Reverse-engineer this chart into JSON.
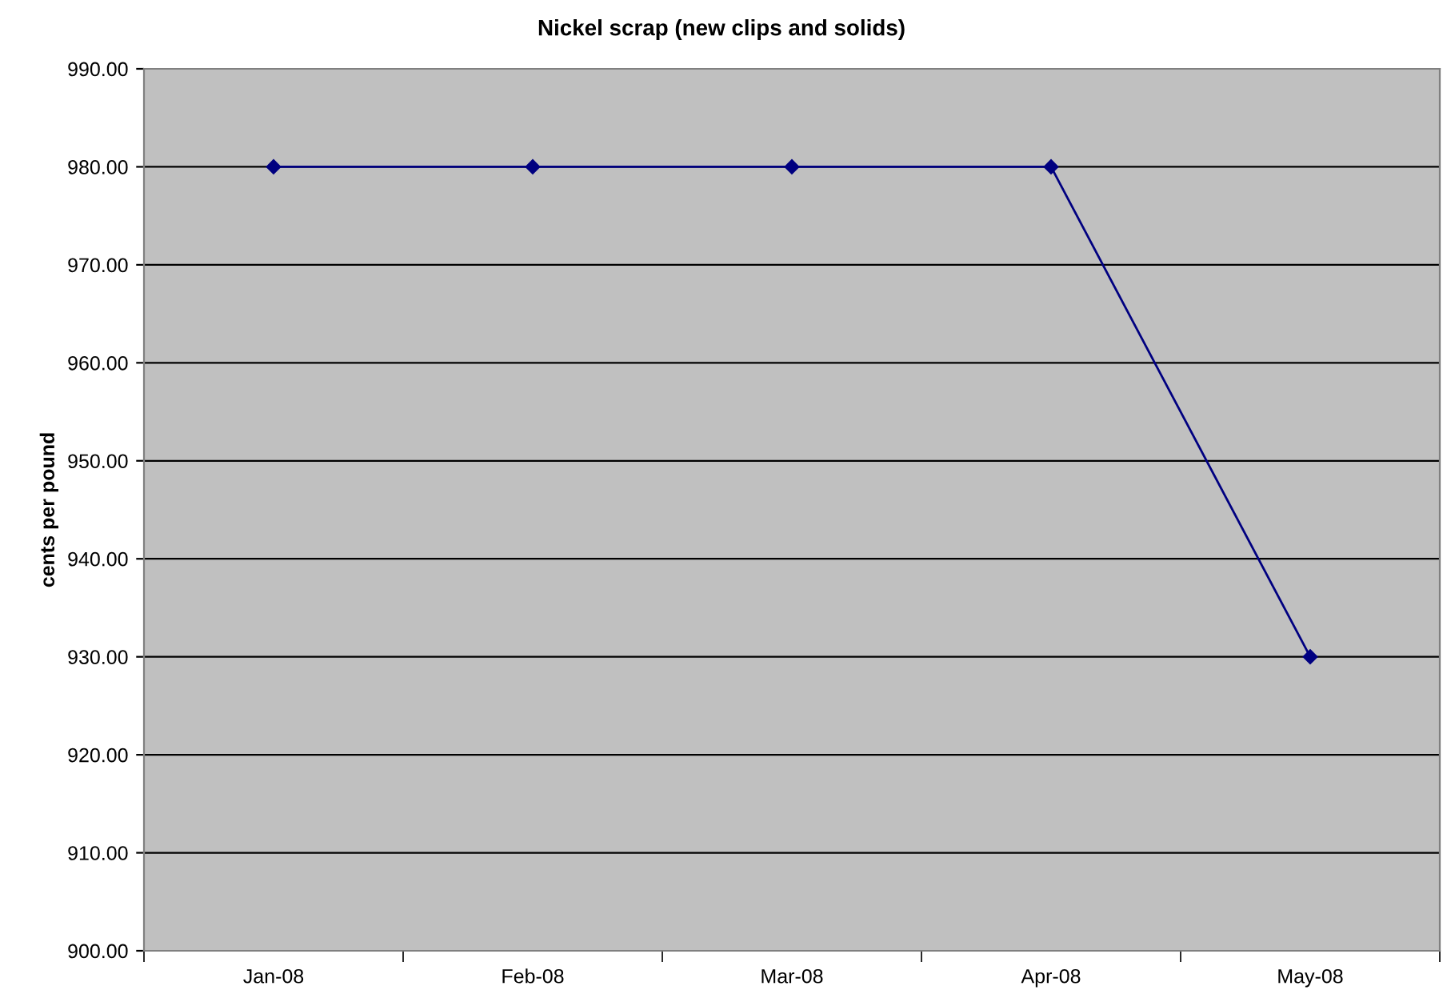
{
  "chart_data": {
    "type": "line",
    "title": "Nickel scrap (new clips and solids)",
    "ylabel": "cents per pound",
    "categories": [
      "Jan-08",
      "Feb-08",
      "Mar-08",
      "Apr-08",
      "May-08"
    ],
    "series": [
      {
        "color": "#000080",
        "values": [
          980,
          980,
          980,
          980,
          930
        ]
      }
    ],
    "ylim": [
      900,
      990
    ],
    "yticks": [
      {
        "value": 900,
        "label": "900.00"
      },
      {
        "value": 910,
        "label": "910.00"
      },
      {
        "value": 920,
        "label": "920.00"
      },
      {
        "value": 930,
        "label": "930.00"
      },
      {
        "value": 940,
        "label": "940.00"
      },
      {
        "value": 950,
        "label": "950.00"
      },
      {
        "value": 960,
        "label": "960.00"
      },
      {
        "value": 970,
        "label": "970.00"
      },
      {
        "value": 980,
        "label": "980.00"
      },
      {
        "value": 990,
        "label": "990.00"
      }
    ],
    "grid": "y",
    "marker": "diamond",
    "line_style": "solid",
    "legend": false
  }
}
